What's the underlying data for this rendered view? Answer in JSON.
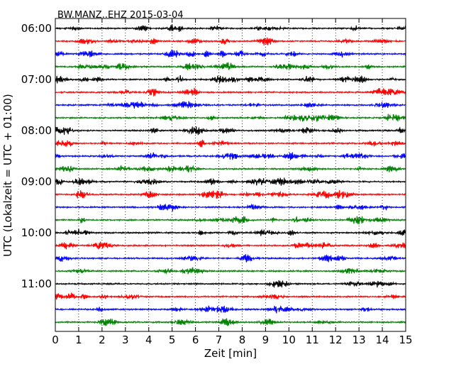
{
  "chart_data": {
    "type": "line",
    "title": "BW.MANZ..EHZ 2015-03-04",
    "xlabel": "Zeit  [min]",
    "ylabel": "UTC (Lokalzeit = UTC + 01:00)",
    "xlim": [
      0,
      15
    ],
    "x_ticks": [
      0,
      1,
      2,
      3,
      4,
      5,
      6,
      7,
      8,
      9,
      10,
      11,
      12,
      13,
      14,
      15
    ],
    "x_tick_labels": [
      "0",
      "1",
      "2",
      "3",
      "4",
      "5",
      "6",
      "7",
      "8",
      "9",
      "10",
      "11",
      "12",
      "13",
      "14",
      "15"
    ],
    "y_tick_labels": [
      "06:00",
      "07:00",
      "08:00",
      "09:00",
      "10:00",
      "11:00"
    ],
    "grid": {
      "x": true,
      "y": false,
      "style": "dotted"
    },
    "trace_interval_min": 15,
    "traces_start": "06:00",
    "trace_count": 24,
    "series_colors": [
      "#000000",
      "#ff0000",
      "#0000ff",
      "#008000"
    ],
    "traces": [
      {
        "start": "06:00",
        "color": "#000000"
      },
      {
        "start": "06:15",
        "color": "#ff0000"
      },
      {
        "start": "06:30",
        "color": "#0000ff"
      },
      {
        "start": "06:45",
        "color": "#008000"
      },
      {
        "start": "07:00",
        "color": "#000000"
      },
      {
        "start": "07:15",
        "color": "#ff0000"
      },
      {
        "start": "07:30",
        "color": "#0000ff"
      },
      {
        "start": "07:45",
        "color": "#008000"
      },
      {
        "start": "08:00",
        "color": "#000000"
      },
      {
        "start": "08:15",
        "color": "#ff0000"
      },
      {
        "start": "08:30",
        "color": "#0000ff"
      },
      {
        "start": "08:45",
        "color": "#008000"
      },
      {
        "start": "09:00",
        "color": "#000000"
      },
      {
        "start": "09:15",
        "color": "#ff0000"
      },
      {
        "start": "09:30",
        "color": "#0000ff"
      },
      {
        "start": "09:45",
        "color": "#008000"
      },
      {
        "start": "10:00",
        "color": "#000000"
      },
      {
        "start": "10:15",
        "color": "#ff0000"
      },
      {
        "start": "10:30",
        "color": "#0000ff"
      },
      {
        "start": "10:45",
        "color": "#008000"
      },
      {
        "start": "11:00",
        "color": "#000000"
      },
      {
        "start": "11:15",
        "color": "#ff0000"
      },
      {
        "start": "11:30",
        "color": "#0000ff"
      },
      {
        "start": "11:45",
        "color": "#008000"
      }
    ]
  }
}
